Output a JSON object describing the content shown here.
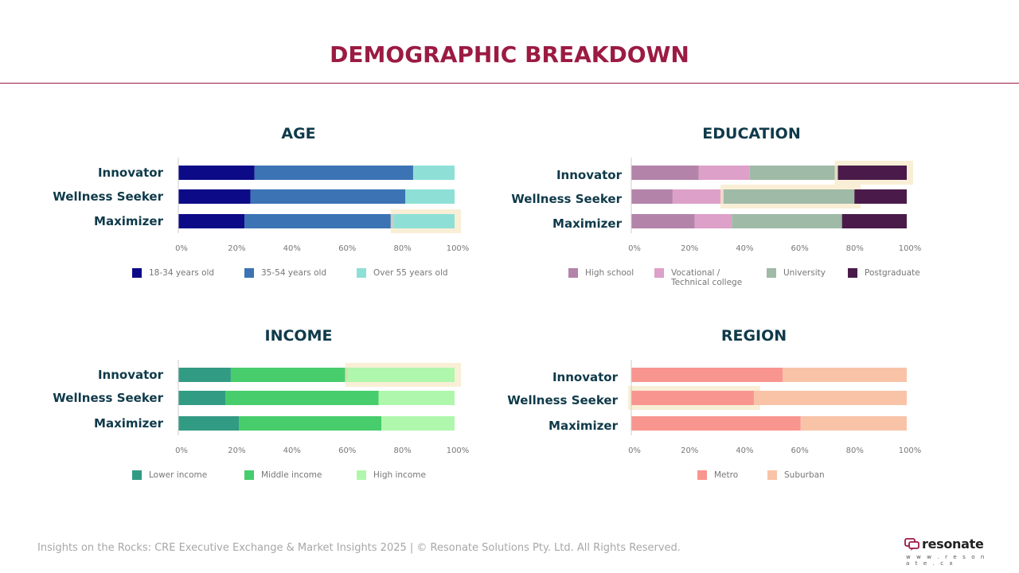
{
  "title": "DEMOGRAPHIC BREAKDOWN",
  "footer": "Insights on the Rocks: CRE Executive Exchange & Market Insights 2025 | © Resonate Solutions Pty. Ltd. All Rights Reserved.",
  "logo": {
    "name": "resonate",
    "url": "w w w . r e s o n a t e . c x",
    "icon": "speech-bubble-icon",
    "color": "#9b1b42"
  },
  "colors": {
    "title": "#9b1b42",
    "chart_title": "#0f3a4a",
    "category_label": "#0f3a4a",
    "tick": "#777777",
    "legend_text": "#777777",
    "axis": "#cccccc",
    "highlight": "#f7e9c8"
  },
  "chart_data": [
    {
      "type": "bar",
      "stacked": true,
      "orientation": "horizontal",
      "title": "AGE",
      "categories": [
        "Innovator",
        "Wellness Seeker",
        "Maximizer"
      ],
      "xlim": [
        0,
        100
      ],
      "ticks": [
        "0%",
        "20%",
        "40%",
        "60%",
        "80%",
        "100%"
      ],
      "legend_position": "bottom",
      "series": [
        {
          "name": "18-34 years old",
          "color": "#0c0a87",
          "values": [
            27.6,
            26.1,
            24.0
          ]
        },
        {
          "name": "35-54 years old",
          "color": "#3b73b4",
          "values": [
            57.4,
            56.1,
            54.0
          ]
        },
        {
          "name": "Over 55 years old",
          "color": "#8ee0d6",
          "values": [
            15.0,
            17.8,
            22.0
          ]
        }
      ],
      "highlight": [
        {
          "category": "Maximizer",
          "series": "Over 55 years old"
        }
      ]
    },
    {
      "type": "bar",
      "stacked": true,
      "orientation": "horizontal",
      "title": "EDUCATION",
      "categories": [
        "Innovator",
        "Wellness Seeker",
        "Maximizer"
      ],
      "xlim": [
        0,
        100
      ],
      "ticks": [
        "0%",
        "20%",
        "40%",
        "60%",
        "80%",
        "100%"
      ],
      "legend_position": "bottom",
      "series": [
        {
          "name": "High school",
          "color": "#b383a9",
          "values": [
            24.5,
            15.0,
            23.0
          ]
        },
        {
          "name": "Vocational / Technical college",
          "color": "#dda0c8",
          "values": [
            18.5,
            18.5,
            13.5
          ]
        },
        {
          "name": "University",
          "color": "#9fbaa6",
          "values": [
            32.0,
            47.5,
            40.0
          ]
        },
        {
          "name": "Postgraduate",
          "color": "#4a1b4a",
          "values": [
            25.0,
            19.0,
            23.5
          ]
        }
      ],
      "highlight": [
        {
          "category": "Innovator",
          "series": "Postgraduate"
        },
        {
          "category": "Wellness Seeker",
          "series": "University"
        }
      ]
    },
    {
      "type": "bar",
      "stacked": true,
      "orientation": "horizontal",
      "title": "INCOME",
      "categories": [
        "Innovator",
        "Wellness Seeker",
        "Maximizer"
      ],
      "xlim": [
        0,
        100
      ],
      "ticks": [
        "0%",
        "20%",
        "40%",
        "60%",
        "80%",
        "100%"
      ],
      "legend_position": "bottom",
      "series": [
        {
          "name": "Lower income",
          "color": "#329b83",
          "values": [
            19.0,
            17.0,
            22.0
          ]
        },
        {
          "name": "Middle income",
          "color": "#47cd6c",
          "values": [
            42.5,
            55.5,
            51.5
          ]
        },
        {
          "name": "High income",
          "color": "#aff7ac",
          "values": [
            38.5,
            27.5,
            26.5
          ]
        }
      ],
      "highlight": [
        {
          "category": "Innovator",
          "series": "High income"
        }
      ]
    },
    {
      "type": "bar",
      "stacked": true,
      "orientation": "horizontal",
      "title": "REGION",
      "categories": [
        "Innovator",
        "Wellness Seeker",
        "Maximizer"
      ],
      "xlim": [
        0,
        100
      ],
      "ticks": [
        "0%",
        "20%",
        "40%",
        "60%",
        "80%",
        "100%"
      ],
      "legend_position": "bottom",
      "series": [
        {
          "name": "Metro",
          "color": "#f9958f",
          "values": [
            55.0,
            44.5,
            61.5
          ]
        },
        {
          "name": "Suburban",
          "color": "#f9c3a8",
          "values": [
            45.0,
            55.5,
            38.5
          ]
        }
      ],
      "highlight": [
        {
          "category": "Wellness Seeker",
          "series": "Metro"
        }
      ]
    }
  ]
}
